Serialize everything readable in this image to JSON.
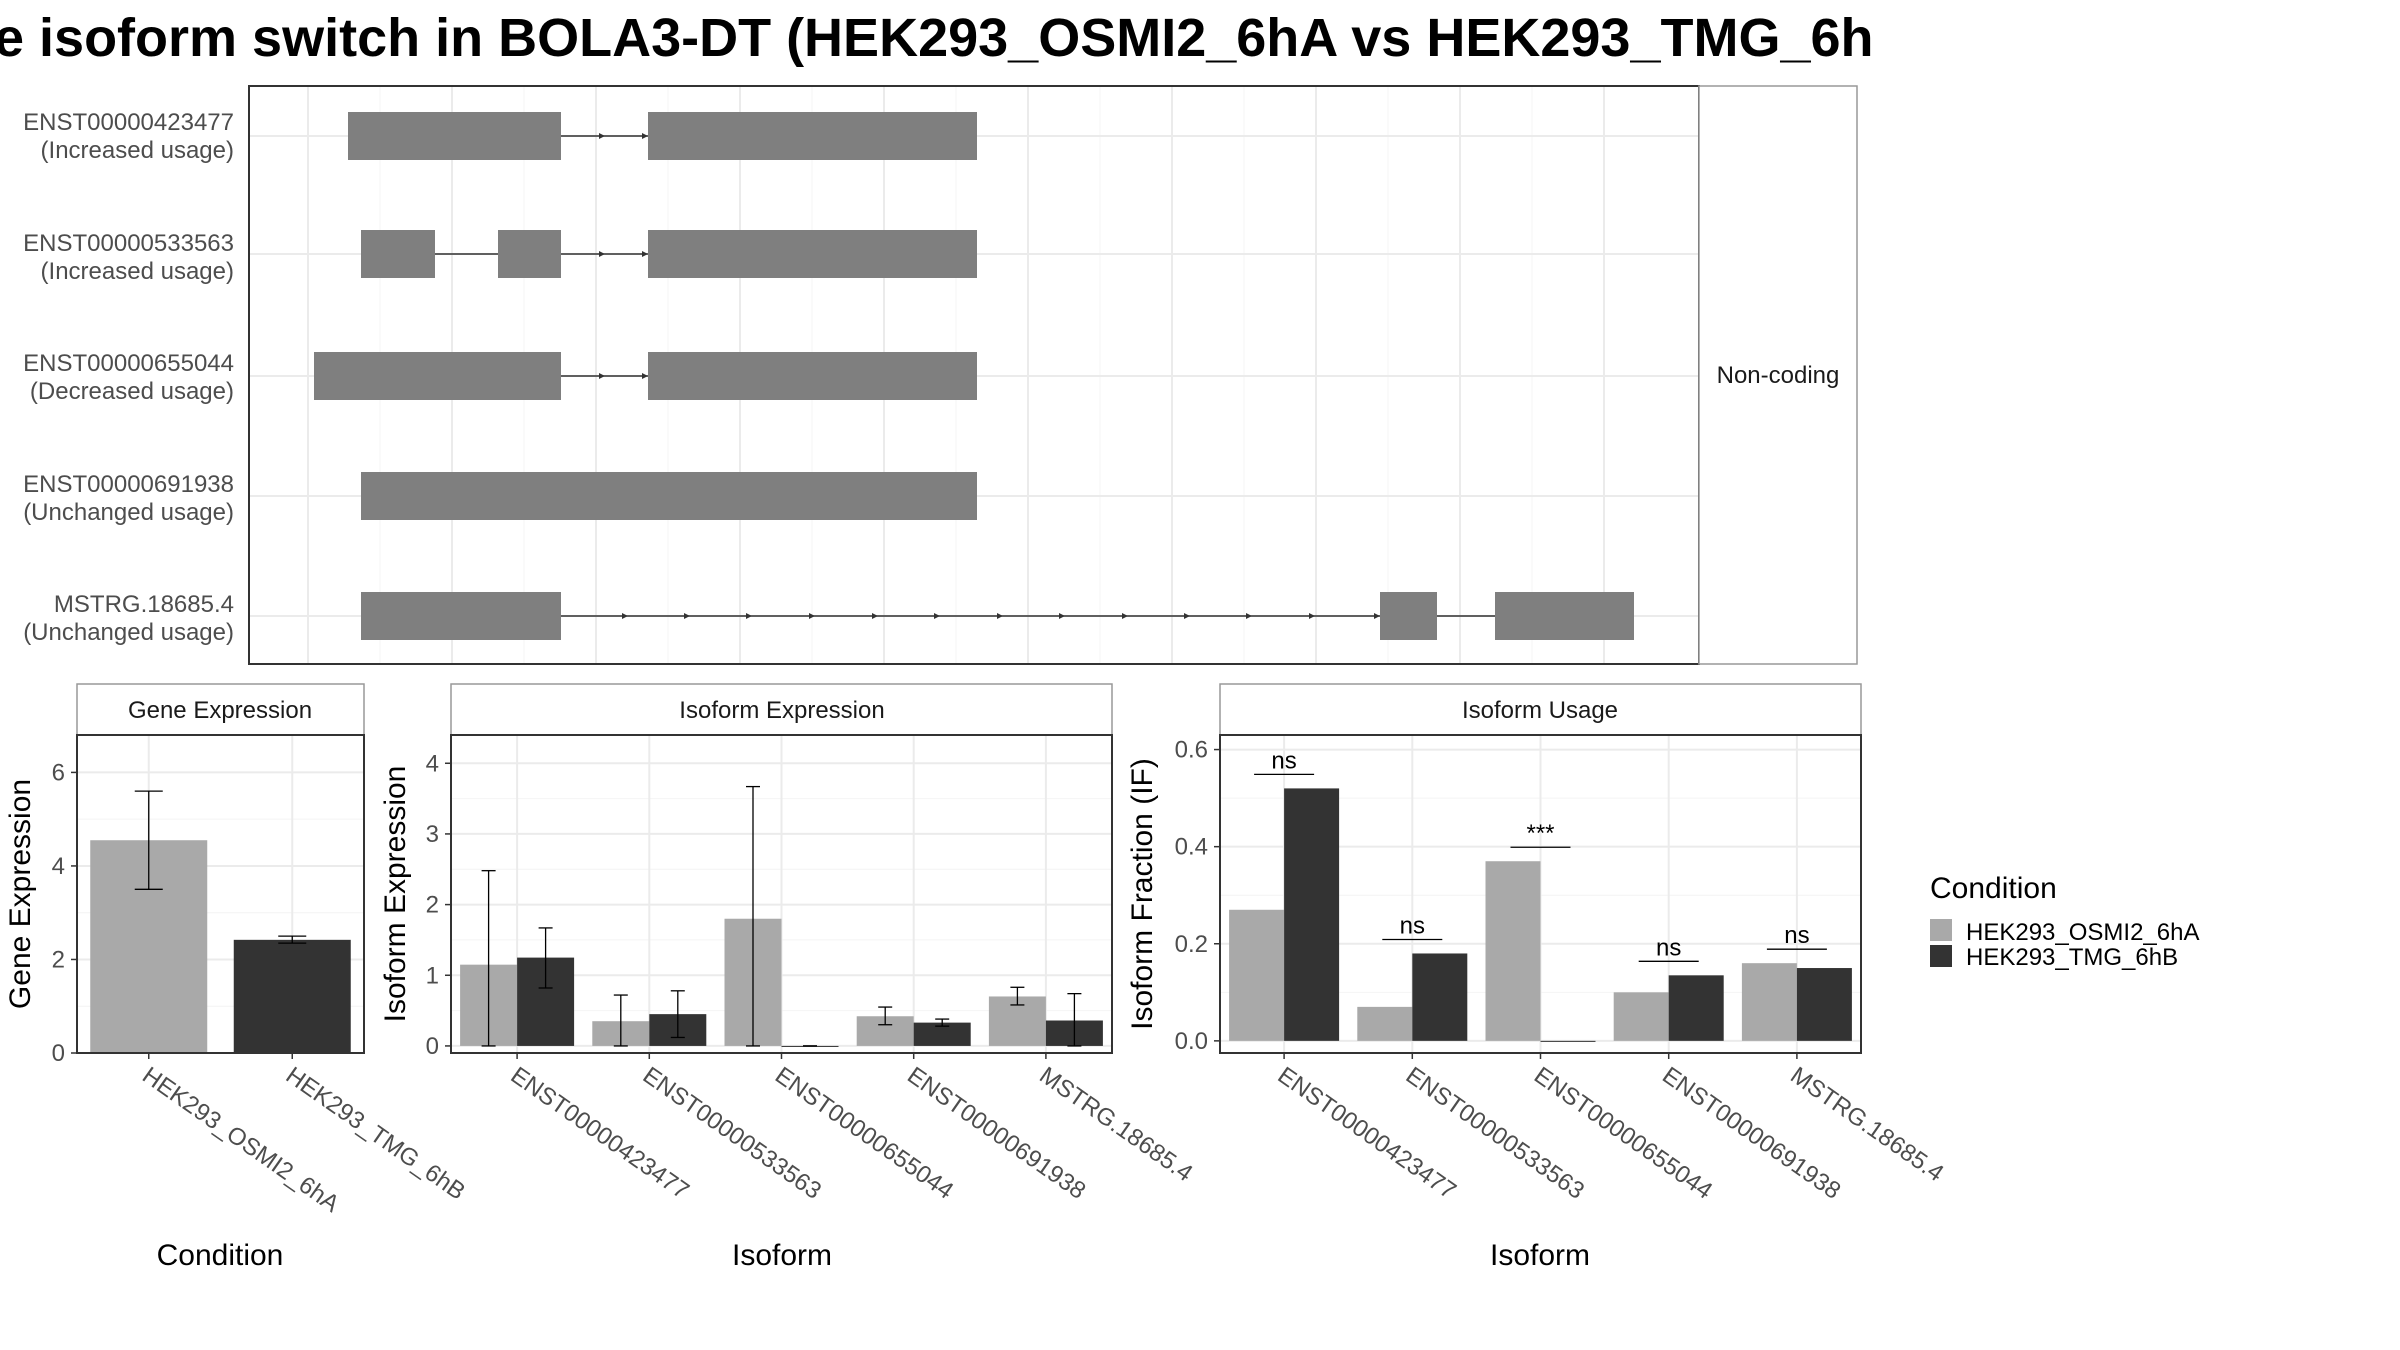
{
  "title": "e isoform switch in BOLA3-DT (HEK293_OSMI2_6hA vs HEK293_TMG_6h",
  "colors": {
    "condition_a": "#a9a9a9",
    "condition_b": "#333333",
    "exon": "#7f7f7f",
    "grid": "#ebebeb",
    "strip_border": "#999999",
    "panel_border": "#333333"
  },
  "chart_data": [
    {
      "type": "gene-structure",
      "facet_label": "Non-coding",
      "grid": true,
      "isoforms": [
        {
          "id": "ENST00000423477",
          "usage": "(Increased usage)"
        },
        {
          "id": "ENST00000533563",
          "usage": "(Increased usage)"
        },
        {
          "id": "ENST00000655044",
          "usage": "(Decreased usage)"
        },
        {
          "id": "ENST00000691938",
          "usage": "(Unchanged usage)"
        },
        {
          "id": "MSTRG.18685.4",
          "usage": "(Unchanged usage)"
        }
      ]
    },
    {
      "type": "bar",
      "panel_title": "Gene Expression",
      "xlabel": "Condition",
      "ylabel": "Gene Expression",
      "ylim": [
        0,
        6.8
      ],
      "yticks": [
        0,
        2,
        4,
        6
      ],
      "grid": true,
      "categories": [
        "HEK293_OSMI2_6hA",
        "HEK293_TMG_6hB"
      ],
      "values": [
        4.55,
        2.42
      ],
      "errors_low": [
        3.5,
        2.35
      ],
      "errors_high": [
        5.6,
        2.5
      ]
    },
    {
      "type": "bar",
      "panel_title": "Isoform Expression",
      "xlabel": "Isoform",
      "ylabel": "Isoform Expression",
      "ylim": [
        -0.1,
        4.4
      ],
      "yticks": [
        0,
        1,
        2,
        3,
        4
      ],
      "grid": true,
      "categories": [
        "ENST00000423477",
        "ENST00000533563",
        "ENST00000655044",
        "ENST00000691938",
        "MSTRG.18685.4"
      ],
      "series": [
        {
          "name": "HEK293_OSMI2_6hA",
          "values": [
            1.15,
            0.35,
            1.8,
            0.42,
            0.7
          ],
          "err_low": [
            0.0,
            0.0,
            0.0,
            0.3,
            0.58
          ],
          "err_high": [
            2.48,
            0.72,
            3.67,
            0.55,
            0.83
          ]
        },
        {
          "name": "HEK293_TMG_6hB",
          "values": [
            1.25,
            0.45,
            0.0,
            0.33,
            0.36
          ],
          "err_low": [
            0.82,
            0.12,
            0.0,
            0.28,
            0.0
          ],
          "err_high": [
            1.67,
            0.78,
            0.0,
            0.38,
            0.74
          ]
        }
      ]
    },
    {
      "type": "bar",
      "panel_title": "Isoform Usage",
      "xlabel": "Isoform",
      "ylabel": "Isoform Fraction (IF)",
      "ylim": [
        -0.025,
        0.63
      ],
      "yticks": [
        0.0,
        0.2,
        0.4,
        0.6
      ],
      "ytick_labels": [
        "0.0",
        "0.2",
        "0.4",
        "0.6"
      ],
      "grid": true,
      "categories": [
        "ENST00000423477",
        "ENST00000533563",
        "ENST00000655044",
        "ENST00000691938",
        "MSTRG.18685.4"
      ],
      "series": [
        {
          "name": "HEK293_OSMI2_6hA",
          "values": [
            0.27,
            0.07,
            0.37,
            0.1,
            0.16
          ]
        },
        {
          "name": "HEK293_TMG_6hB",
          "values": [
            0.52,
            0.18,
            0.0,
            0.135,
            0.15
          ]
        }
      ],
      "significance": [
        "ns",
        "ns",
        "***",
        "ns",
        "ns"
      ]
    }
  ],
  "legend": {
    "title": "Condition",
    "entries": [
      "HEK293_OSMI2_6hA",
      "HEK293_TMG_6hB"
    ],
    "placement": "right"
  }
}
